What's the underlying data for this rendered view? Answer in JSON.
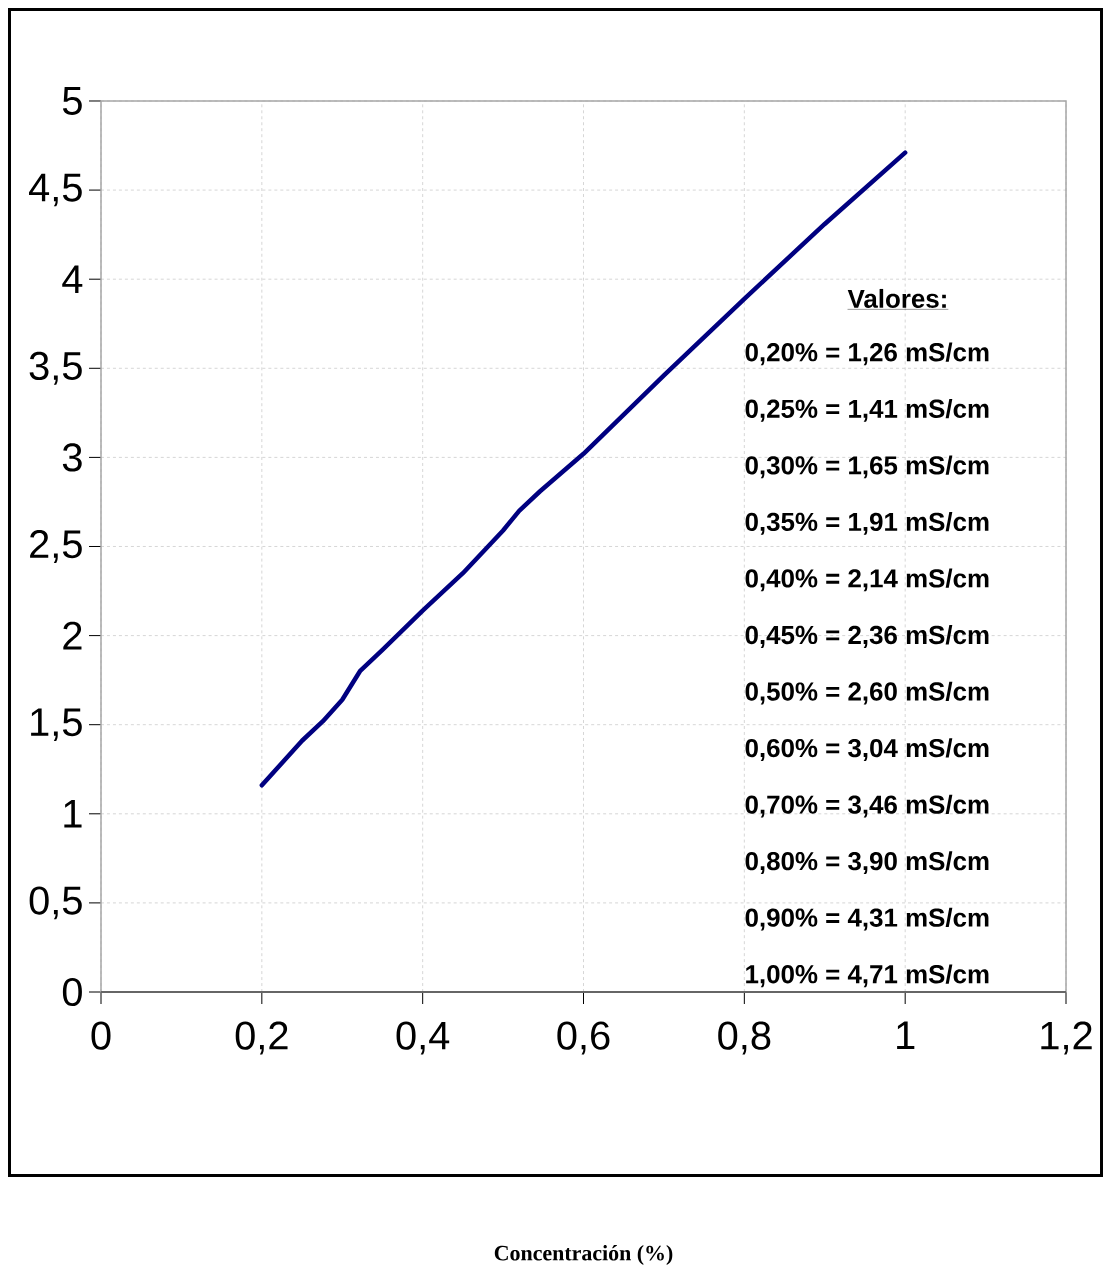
{
  "chart_data": {
    "type": "line",
    "x": [
      0.2,
      0.25,
      0.276,
      0.3,
      0.322,
      0.35,
      0.4,
      0.45,
      0.5,
      0.52,
      0.546,
      0.6,
      0.7,
      0.8,
      0.9,
      1.0
    ],
    "series": [
      {
        "color": "#000080",
        "values": [
          1.16,
          1.41,
          1.52,
          1.64,
          1.8,
          1.92,
          2.14,
          2.35,
          2.59,
          2.7,
          2.81,
          3.02,
          3.46,
          3.89,
          4.31,
          4.71
        ]
      }
    ],
    "xlim": [
      0,
      1.2
    ],
    "ylim": [
      0,
      5
    ],
    "xticks": [
      {
        "value": 0,
        "label": "0"
      },
      {
        "value": 0.2,
        "label": "0,2"
      },
      {
        "value": 0.4,
        "label": "0,4"
      },
      {
        "value": 0.6,
        "label": "0,6"
      },
      {
        "value": 0.8,
        "label": "0,8"
      },
      {
        "value": 1,
        "label": "1"
      },
      {
        "value": 1.2,
        "label": "1,2"
      }
    ],
    "yticks": [
      {
        "value": 0,
        "label": "0"
      },
      {
        "value": 0.5,
        "label": "0,5"
      },
      {
        "value": 1,
        "label": "1"
      },
      {
        "value": 1.5,
        "label": "1,5"
      },
      {
        "value": 2,
        "label": "2"
      },
      {
        "value": 2.5,
        "label": "2,5"
      },
      {
        "value": 3,
        "label": "3"
      },
      {
        "value": 3.5,
        "label": "3,5"
      },
      {
        "value": 4,
        "label": "4"
      },
      {
        "value": 4.5,
        "label": "4,5"
      },
      {
        "value": 5,
        "label": "5"
      }
    ],
    "grid": true,
    "marker": "none",
    "line_style": "solid",
    "annotations": [
      "Valores:",
      "0,20% = 1,26 mS/cm",
      "0,25% = 1,41 mS/cm",
      "0,30% = 1,65 mS/cm",
      "0,35% = 1,91 mS/cm",
      "0,40% = 2,14 mS/cm",
      "0,45% = 2,36 mS/cm",
      "0,50% = 2,60 mS/cm",
      "0,60% = 3,04 mS/cm",
      "0,70% = 3,46 mS/cm",
      "0,80% = 3,90 mS/cm",
      "0,90% = 4,31 mS/cm",
      "1,00% = 4,71 mS/cm",
      "Concentración (%)"
    ]
  }
}
